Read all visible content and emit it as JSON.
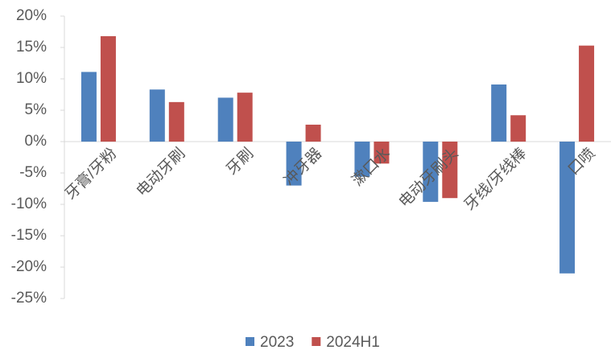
{
  "chart_data": {
    "type": "bar",
    "categories": [
      "牙膏/牙粉",
      "电动牙刷",
      "牙刷",
      "冲牙器",
      "漱口水",
      "电动牙刷头",
      "牙线/牙线棒",
      "口喷"
    ],
    "series": [
      {
        "name": "2023",
        "color": "#4f81bd",
        "values": [
          11.1,
          8.3,
          7.0,
          -7.0,
          -5.6,
          -9.6,
          9.1,
          -21.0
        ]
      },
      {
        "name": "2024H1",
        "color": "#c0504d",
        "values": [
          16.8,
          6.3,
          7.8,
          2.7,
          -3.5,
          -9.0,
          4.2,
          15.3
        ]
      }
    ],
    "ylim": [
      -25,
      20
    ],
    "yticks": [
      {
        "value": -25,
        "label": "-25%"
      },
      {
        "value": -20,
        "label": "-20%"
      },
      {
        "value": -15,
        "label": "-15%"
      },
      {
        "value": -10,
        "label": "-10%"
      },
      {
        "value": -5,
        "label": "-5%"
      },
      {
        "value": 0,
        "label": "0%"
      },
      {
        "value": 5,
        "label": "5%"
      },
      {
        "value": 10,
        "label": "10%"
      },
      {
        "value": 15,
        "label": "15%"
      },
      {
        "value": 20,
        "label": "20%"
      }
    ],
    "grid": false,
    "legend": "bottom"
  }
}
